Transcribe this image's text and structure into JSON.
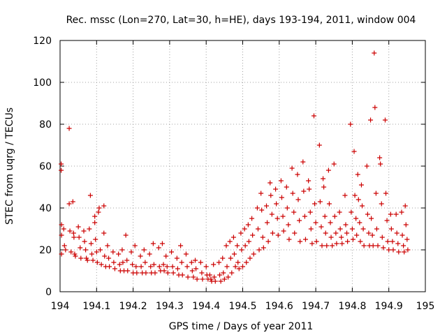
{
  "chart_data": {
    "type": "scatter",
    "title": "Rec. mssc (Lon=270, Lat=30, h=HE), days 193-194, 2011, window 004",
    "xlabel": "GPS time / Days of year 2011",
    "ylabel": "STEC from uqrg / TECUs",
    "xlim": [
      194,
      195
    ],
    "ylim": [
      0,
      120
    ],
    "x_ticks": [
      "194",
      "194.1",
      "194.2",
      "194.3",
      "194.4",
      "194.5",
      "194.6",
      "194.7",
      "194.8",
      "194.9",
      "195"
    ],
    "y_ticks": [
      "0",
      "20",
      "40",
      "60",
      "80",
      "100",
      "120"
    ],
    "x_tick_values": [
      194,
      194.1,
      194.2,
      194.3,
      194.4,
      194.5,
      194.6,
      194.7,
      194.8,
      194.9,
      195
    ],
    "y_tick_values": [
      0,
      20,
      40,
      60,
      80,
      100,
      120
    ],
    "grid": true,
    "marker": "+",
    "color": "#cc0000",
    "series": [
      {
        "name": "STEC",
        "points": [
          [
            194.003,
            61
          ],
          [
            194.003,
            58
          ],
          [
            194.004,
            32
          ],
          [
            194.004,
            27
          ],
          [
            194.004,
            18
          ],
          [
            194.01,
            30
          ],
          [
            194.012,
            22
          ],
          [
            194.015,
            20
          ],
          [
            194.025,
            78
          ],
          [
            194.025,
            42
          ],
          [
            194.027,
            29
          ],
          [
            194.03,
            19
          ],
          [
            194.035,
            43
          ],
          [
            194.037,
            28
          ],
          [
            194.038,
            26
          ],
          [
            194.04,
            18
          ],
          [
            194.042,
            17
          ],
          [
            194.05,
            31
          ],
          [
            194.052,
            26
          ],
          [
            194.055,
            21
          ],
          [
            194.057,
            16
          ],
          [
            194.065,
            29
          ],
          [
            194.067,
            24
          ],
          [
            194.07,
            20
          ],
          [
            194.072,
            16
          ],
          [
            194.075,
            15
          ],
          [
            194.08,
            30
          ],
          [
            194.083,
            46
          ],
          [
            194.085,
            23
          ],
          [
            194.087,
            18
          ],
          [
            194.09,
            15
          ],
          [
            194.095,
            36
          ],
          [
            194.095,
            33
          ],
          [
            194.097,
            25
          ],
          [
            194.1,
            19
          ],
          [
            194.102,
            14
          ],
          [
            194.105,
            38
          ],
          [
            194.107,
            40
          ],
          [
            194.11,
            20
          ],
          [
            194.113,
            13
          ],
          [
            194.12,
            41
          ],
          [
            194.12,
            28
          ],
          [
            194.122,
            17
          ],
          [
            194.125,
            12
          ],
          [
            194.13,
            22
          ],
          [
            194.133,
            16
          ],
          [
            194.135,
            12
          ],
          [
            194.145,
            19
          ],
          [
            194.147,
            14
          ],
          [
            194.15,
            11
          ],
          [
            194.16,
            18
          ],
          [
            194.163,
            13
          ],
          [
            194.165,
            10
          ],
          [
            194.17,
            20
          ],
          [
            194.172,
            14
          ],
          [
            194.175,
            10
          ],
          [
            194.18,
            27
          ],
          [
            194.183,
            15
          ],
          [
            194.185,
            10
          ],
          [
            194.195,
            19
          ],
          [
            194.198,
            13
          ],
          [
            194.2,
            9
          ],
          [
            194.205,
            22
          ],
          [
            194.208,
            12
          ],
          [
            194.21,
            9
          ],
          [
            194.22,
            17
          ],
          [
            194.222,
            12
          ],
          [
            194.225,
            9
          ],
          [
            194.23,
            20
          ],
          [
            194.233,
            14
          ],
          [
            194.235,
            9
          ],
          [
            194.245,
            18
          ],
          [
            194.248,
            12
          ],
          [
            194.25,
            9
          ],
          [
            194.255,
            23
          ],
          [
            194.257,
            13
          ],
          [
            194.26,
            9
          ],
          [
            194.27,
            21
          ],
          [
            194.272,
            12
          ],
          [
            194.275,
            10
          ],
          [
            194.28,
            23
          ],
          [
            194.283,
            13
          ],
          [
            194.285,
            10
          ],
          [
            194.29,
            17
          ],
          [
            194.293,
            12
          ],
          [
            194.295,
            9
          ],
          [
            194.305,
            19
          ],
          [
            194.308,
            12
          ],
          [
            194.31,
            9
          ],
          [
            194.32,
            16
          ],
          [
            194.322,
            11
          ],
          [
            194.325,
            8
          ],
          [
            194.33,
            22
          ],
          [
            194.333,
            14
          ],
          [
            194.335,
            8
          ],
          [
            194.345,
            18
          ],
          [
            194.348,
            12
          ],
          [
            194.35,
            7
          ],
          [
            194.36,
            14
          ],
          [
            194.362,
            10
          ],
          [
            194.365,
            7
          ],
          [
            194.37,
            15
          ],
          [
            194.372,
            11
          ],
          [
            194.375,
            6
          ],
          [
            194.385,
            14
          ],
          [
            194.388,
            9
          ],
          [
            194.39,
            6
          ],
          [
            194.4,
            12
          ],
          [
            194.402,
            8
          ],
          [
            194.405,
            6
          ],
          [
            194.41,
            8
          ],
          [
            194.413,
            6
          ],
          [
            194.415,
            5
          ],
          [
            194.42,
            13
          ],
          [
            194.422,
            7
          ],
          [
            194.425,
            5
          ],
          [
            194.435,
            14
          ],
          [
            194.437,
            8
          ],
          [
            194.44,
            5
          ],
          [
            194.445,
            16
          ],
          [
            194.447,
            9
          ],
          [
            194.45,
            6
          ],
          [
            194.455,
            22
          ],
          [
            194.457,
            12
          ],
          [
            194.46,
            7
          ],
          [
            194.465,
            24
          ],
          [
            194.467,
            16
          ],
          [
            194.47,
            9
          ],
          [
            194.475,
            26
          ],
          [
            194.477,
            18
          ],
          [
            194.48,
            12
          ],
          [
            194.485,
            22
          ],
          [
            194.487,
            14
          ],
          [
            194.49,
            11
          ],
          [
            194.495,
            28
          ],
          [
            194.497,
            20
          ],
          [
            194.5,
            12
          ],
          [
            194.505,
            30
          ],
          [
            194.507,
            22
          ],
          [
            194.51,
            14
          ],
          [
            194.515,
            32
          ],
          [
            194.517,
            24
          ],
          [
            194.52,
            16
          ],
          [
            194.525,
            35
          ],
          [
            194.527,
            27
          ],
          [
            194.53,
            18
          ],
          [
            194.54,
            40
          ],
          [
            194.542,
            30
          ],
          [
            194.545,
            20
          ],
          [
            194.55,
            47
          ],
          [
            194.552,
            39
          ],
          [
            194.555,
            26
          ],
          [
            194.557,
            21
          ],
          [
            194.565,
            41
          ],
          [
            194.567,
            33
          ],
          [
            194.57,
            24
          ],
          [
            194.575,
            52
          ],
          [
            194.577,
            46
          ],
          [
            194.58,
            37
          ],
          [
            194.582,
            28
          ],
          [
            194.59,
            49
          ],
          [
            194.592,
            42
          ],
          [
            194.595,
            35
          ],
          [
            194.597,
            27
          ],
          [
            194.605,
            53
          ],
          [
            194.607,
            45
          ],
          [
            194.61,
            36
          ],
          [
            194.612,
            29
          ],
          [
            194.62,
            50
          ],
          [
            194.622,
            40
          ],
          [
            194.625,
            32
          ],
          [
            194.627,
            25
          ],
          [
            194.635,
            59
          ],
          [
            194.637,
            47
          ],
          [
            194.64,
            38
          ],
          [
            194.642,
            28
          ],
          [
            194.65,
            56
          ],
          [
            194.652,
            44
          ],
          [
            194.655,
            34
          ],
          [
            194.657,
            24
          ],
          [
            194.665,
            62
          ],
          [
            194.667,
            48
          ],
          [
            194.67,
            36
          ],
          [
            194.672,
            25
          ],
          [
            194.68,
            53
          ],
          [
            194.682,
            49
          ],
          [
            194.685,
            38
          ],
          [
            194.687,
            30
          ],
          [
            194.69,
            23
          ],
          [
            194.695,
            84
          ],
          [
            194.697,
            42
          ],
          [
            194.7,
            33
          ],
          [
            194.702,
            24
          ],
          [
            194.71,
            70
          ],
          [
            194.712,
            43
          ],
          [
            194.715,
            31
          ],
          [
            194.717,
            22
          ],
          [
            194.72,
            54
          ],
          [
            194.722,
            50
          ],
          [
            194.725,
            36
          ],
          [
            194.727,
            28
          ],
          [
            194.73,
            22
          ],
          [
            194.735,
            58
          ],
          [
            194.737,
            42
          ],
          [
            194.74,
            33
          ],
          [
            194.742,
            26
          ],
          [
            194.745,
            22
          ],
          [
            194.75,
            61
          ],
          [
            194.752,
            36
          ],
          [
            194.755,
            28
          ],
          [
            194.757,
            23
          ],
          [
            194.765,
            38
          ],
          [
            194.767,
            30
          ],
          [
            194.77,
            26
          ],
          [
            194.772,
            23
          ],
          [
            194.78,
            46
          ],
          [
            194.782,
            32
          ],
          [
            194.785,
            28
          ],
          [
            194.787,
            24
          ],
          [
            194.795,
            80
          ],
          [
            194.797,
            38
          ],
          [
            194.8,
            30
          ],
          [
            194.802,
            25
          ],
          [
            194.805,
            67
          ],
          [
            194.807,
            46
          ],
          [
            194.81,
            35
          ],
          [
            194.812,
            27
          ],
          [
            194.815,
            56
          ],
          [
            194.817,
            44
          ],
          [
            194.82,
            33
          ],
          [
            194.822,
            24
          ],
          [
            194.825,
            51
          ],
          [
            194.827,
            41
          ],
          [
            194.83,
            30
          ],
          [
            194.832,
            22
          ],
          [
            194.84,
            60
          ],
          [
            194.842,
            37
          ],
          [
            194.845,
            28
          ],
          [
            194.847,
            22
          ],
          [
            194.85,
            82
          ],
          [
            194.852,
            35
          ],
          [
            194.855,
            27
          ],
          [
            194.857,
            22
          ],
          [
            194.86,
            114
          ],
          [
            194.862,
            88
          ],
          [
            194.865,
            47
          ],
          [
            194.867,
            30
          ],
          [
            194.87,
            22
          ],
          [
            194.875,
            64
          ],
          [
            194.877,
            61
          ],
          [
            194.88,
            42
          ],
          [
            194.882,
            26
          ],
          [
            194.885,
            21
          ],
          [
            194.89,
            82
          ],
          [
            194.892,
            47
          ],
          [
            194.895,
            34
          ],
          [
            194.897,
            24
          ],
          [
            194.9,
            20
          ],
          [
            194.905,
            37
          ],
          [
            194.907,
            30
          ],
          [
            194.91,
            24
          ],
          [
            194.912,
            20
          ],
          [
            194.92,
            37
          ],
          [
            194.922,
            28
          ],
          [
            194.925,
            23
          ],
          [
            194.927,
            19
          ],
          [
            194.935,
            38
          ],
          [
            194.937,
            27
          ],
          [
            194.94,
            22
          ],
          [
            194.942,
            19
          ],
          [
            194.945,
            41
          ],
          [
            194.947,
            32
          ],
          [
            194.95,
            25
          ],
          [
            194.952,
            20
          ]
        ]
      }
    ]
  }
}
